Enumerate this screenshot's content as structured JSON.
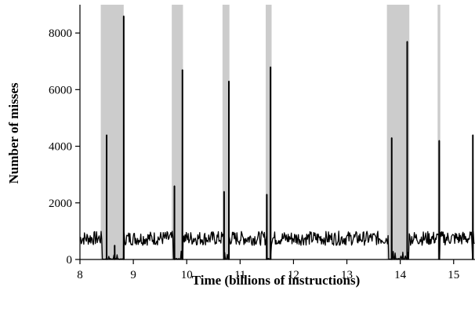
{
  "chart_data": {
    "type": "line",
    "xlabel": "Time (billions of instructions)",
    "ylabel": "Number of misses",
    "xlim": [
      8,
      15.4
    ],
    "ylim": [
      0,
      9000
    ],
    "x_ticks": [
      8,
      9,
      10,
      11,
      12,
      13,
      14,
      15
    ],
    "x_tick_labels": [
      "8",
      "9",
      "10",
      "11",
      "12",
      "13",
      "14",
      "15"
    ],
    "y_ticks": [
      0,
      2000,
      4000,
      6000,
      8000
    ],
    "y_tick_labels": [
      "0",
      "2000",
      "4000",
      "6000",
      "8000"
    ],
    "grid": false,
    "legend": "none",
    "colors": {
      "line": "#000000",
      "shaded": "#cccccc",
      "axis": "#000000"
    },
    "shaded_intervals": [
      [
        8.39,
        8.82
      ],
      [
        9.72,
        9.93
      ],
      [
        10.67,
        10.8
      ],
      [
        11.48,
        11.59
      ],
      [
        13.75,
        14.17
      ],
      [
        14.7,
        14.75
      ]
    ],
    "spikes": [
      {
        "x": 8.5,
        "y": 4400
      },
      {
        "x": 8.65,
        "y": 500
      },
      {
        "x": 8.82,
        "y": 8600
      },
      {
        "x": 9.77,
        "y": 2600
      },
      {
        "x": 9.92,
        "y": 6700
      },
      {
        "x": 10.7,
        "y": 2400
      },
      {
        "x": 10.79,
        "y": 6300
      },
      {
        "x": 11.5,
        "y": 2300
      },
      {
        "x": 11.57,
        "y": 6800
      },
      {
        "x": 13.84,
        "y": 4300
      },
      {
        "x": 14.13,
        "y": 7700
      },
      {
        "x": 14.73,
        "y": 4200
      },
      {
        "x": 15.36,
        "y": 4400
      }
    ],
    "baseline_level": 750,
    "series": [
      {
        "values_note": "",
        "baseline_range": [
          500,
          1000
        ]
      }
    ]
  }
}
